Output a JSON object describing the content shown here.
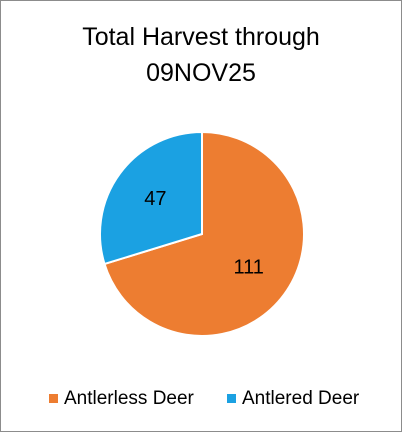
{
  "chart_data": {
    "type": "pie",
    "title": "Total Harvest through 09NOV25",
    "categories": [
      "Antlerless Deer",
      "Antlered Deer"
    ],
    "values": [
      111,
      47
    ],
    "colors": [
      "#ed7d31",
      "#1ba1e2"
    ],
    "legend": "bottom"
  }
}
